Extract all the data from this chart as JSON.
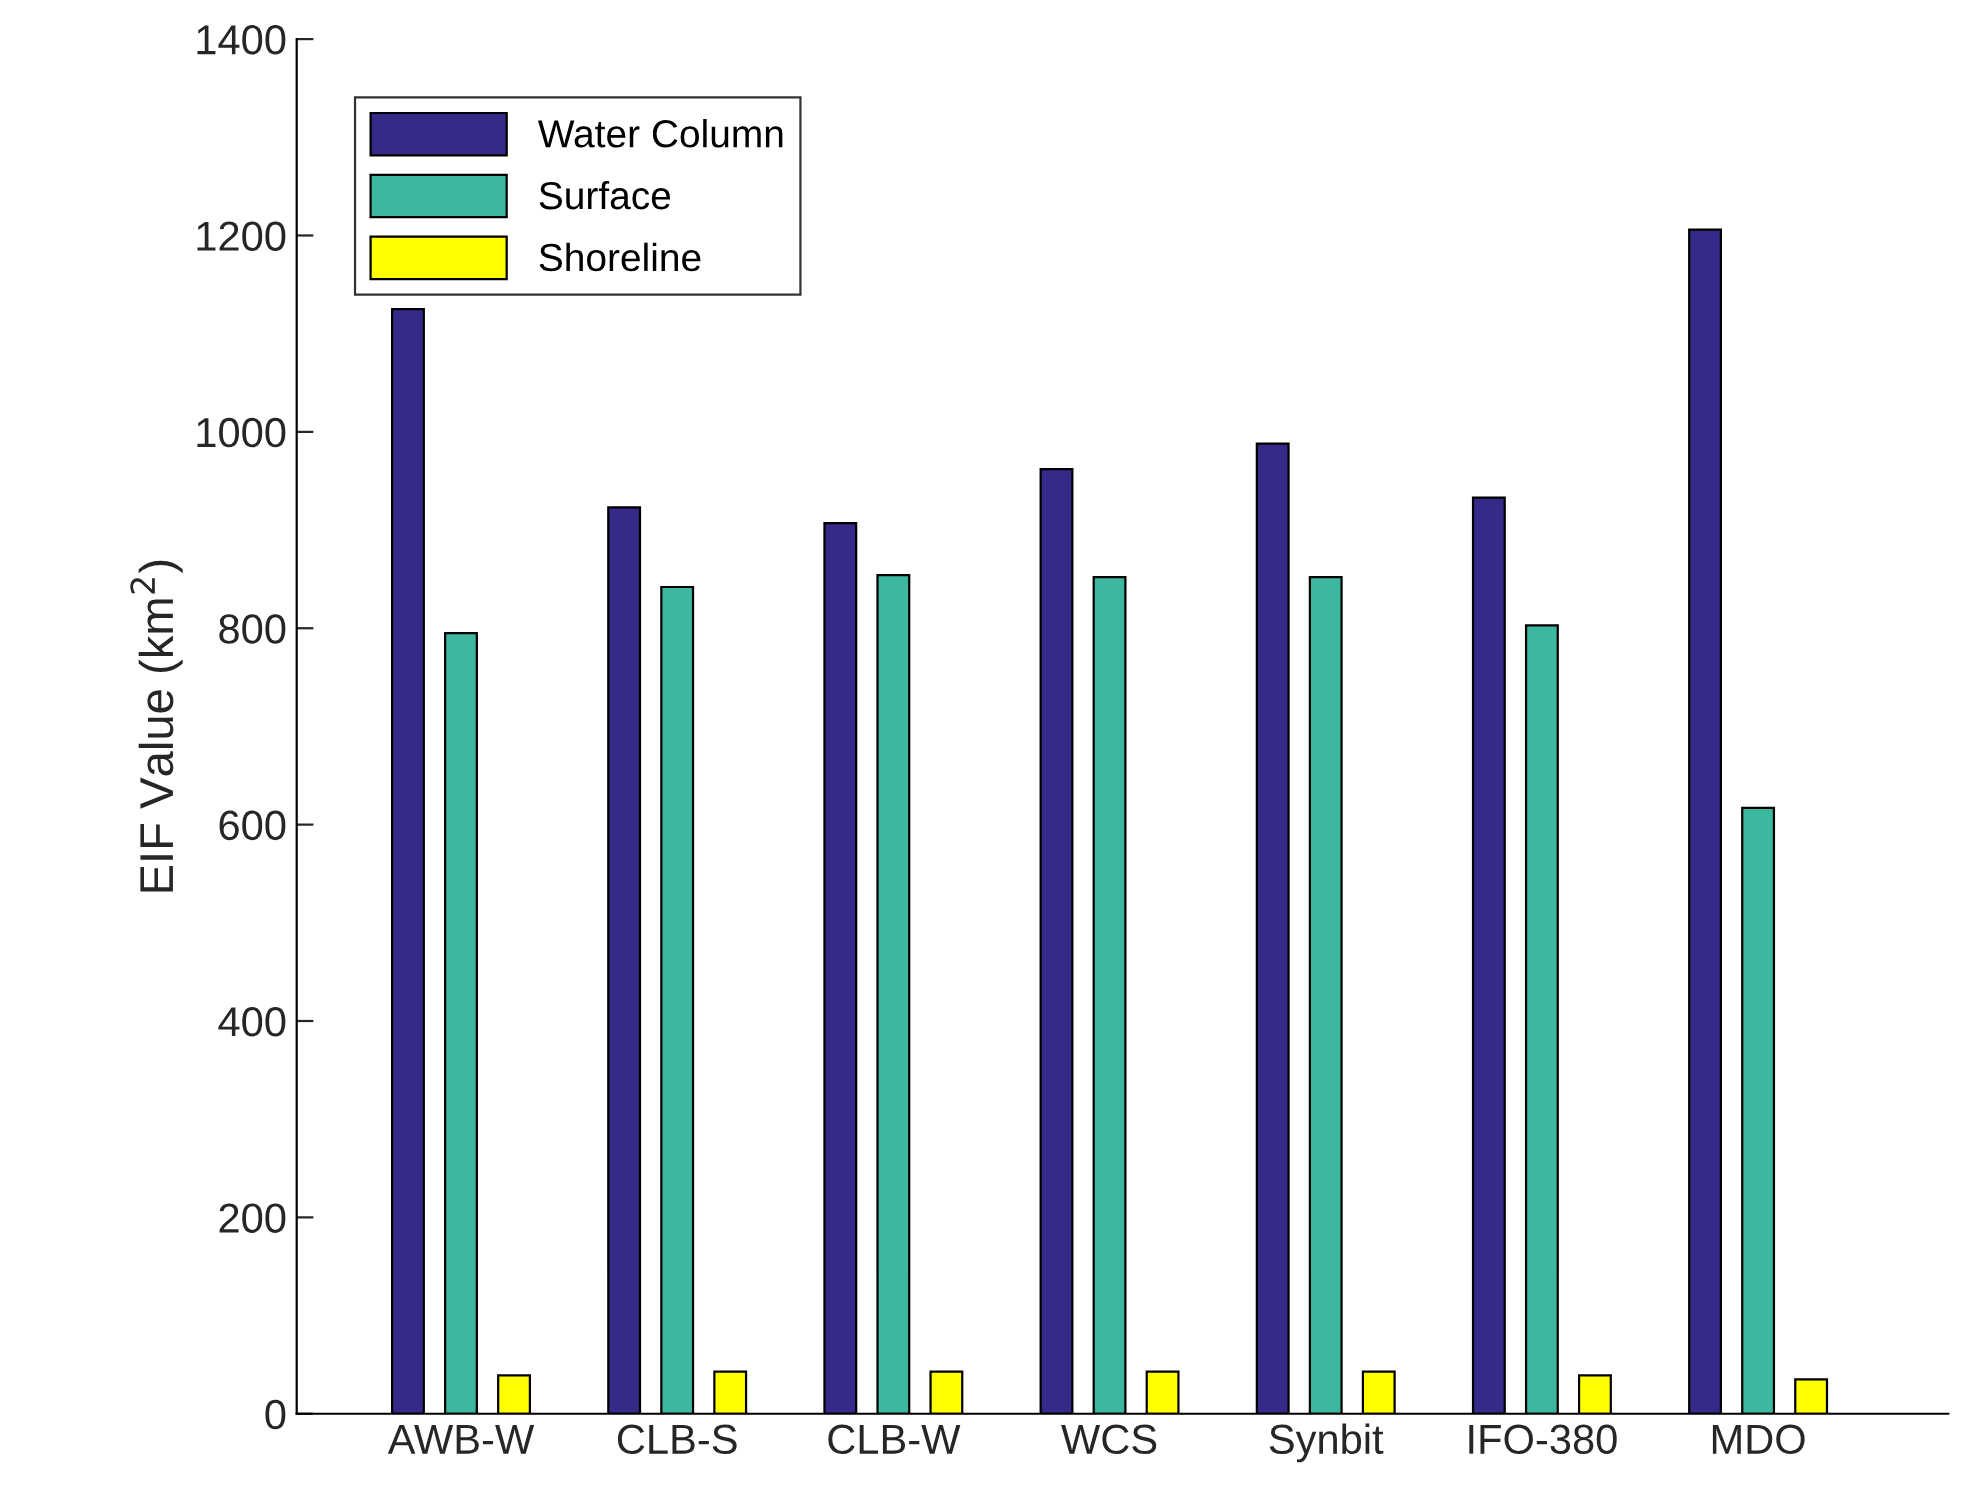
{
  "chart_data": {
    "type": "bar",
    "ylabel": "EIF Value (km$^{2}$)",
    "categories": [
      "AWB-W",
      "CLB-S",
      "CLB-W",
      "WCS",
      "Synbit",
      "IFO-380",
      "MDO"
    ],
    "series": [
      {
        "name": "Water Column",
        "color": "#352a87",
        "values": [
          1125,
          923,
          907,
          962,
          988,
          933,
          1206
        ]
      },
      {
        "name": "Surface",
        "color": "#3bb89e",
        "values": [
          795,
          842,
          854,
          852,
          852,
          803,
          617
        ]
      },
      {
        "name": "Shoreline",
        "color": "#ffff00",
        "values": [
          39,
          43,
          43,
          43,
          43,
          39,
          35
        ]
      }
    ],
    "ylim": [
      0,
      1400
    ],
    "yticks": [
      0,
      200,
      400,
      600,
      800,
      1000,
      1200,
      1400
    ],
    "grid": false,
    "legend": "top left"
  }
}
